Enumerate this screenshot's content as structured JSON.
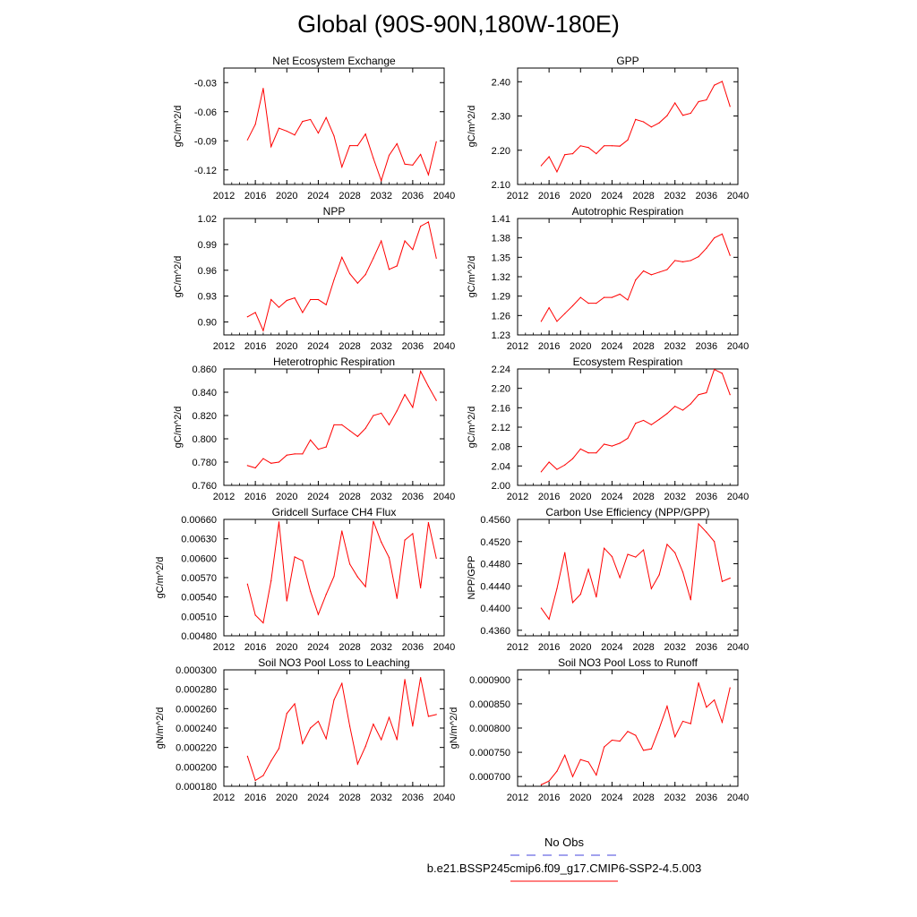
{
  "figure": {
    "title": "Global (90S-90N,180W-180E)",
    "legend": {
      "obs_label": "No Obs",
      "run_label": "b.e21.BSSP245cmip6.f09_g17.CMIP6-SSP2-4.5.003",
      "obs_color": "#4444dd",
      "run_color": "#ff0000"
    }
  },
  "chart_data": [
    {
      "type": "line",
      "title": "Net Ecosystem Exchange",
      "ylabel": "gC/m^2/d",
      "xlabel": "",
      "xlim": [
        2012,
        2040
      ],
      "ylim": [
        -0.135,
        -0.015
      ],
      "xticks": [
        "2012",
        "2016",
        "2020",
        "2024",
        "2028",
        "2032",
        "2036",
        "2040"
      ],
      "yticks": [
        "-0.03",
        "-0.06",
        "-0.09",
        "-0.12"
      ],
      "ytick_values": [
        -0.03,
        -0.06,
        -0.09,
        -0.12
      ],
      "x": [
        2015,
        2016,
        2017,
        2018,
        2019,
        2020,
        2021,
        2022,
        2023,
        2024,
        2025,
        2026,
        2027,
        2028,
        2029,
        2030,
        2031,
        2032,
        2033,
        2034,
        2035,
        2036,
        2037,
        2038,
        2039
      ],
      "values": [
        -0.089,
        -0.073,
        -0.036,
        -0.096,
        -0.077,
        -0.08,
        -0.084,
        -0.07,
        -0.068,
        -0.082,
        -0.066,
        -0.085,
        -0.117,
        -0.095,
        -0.095,
        -0.083,
        -0.108,
        -0.131,
        -0.105,
        -0.093,
        -0.114,
        -0.115,
        -0.104,
        -0.125,
        -0.091
      ]
    },
    {
      "type": "line",
      "title": "GPP",
      "ylabel": "gC/m^2/d",
      "xlabel": "",
      "xlim": [
        2012,
        2040
      ],
      "ylim": [
        2.1,
        2.44
      ],
      "xticks": [
        "2012",
        "2016",
        "2020",
        "2024",
        "2028",
        "2032",
        "2036",
        "2040"
      ],
      "yticks": [
        "2.10",
        "2.20",
        "2.30",
        "2.40"
      ],
      "ytick_values": [
        2.1,
        2.2,
        2.3,
        2.4
      ],
      "x": [
        2015,
        2016,
        2017,
        2018,
        2019,
        2020,
        2021,
        2022,
        2023,
        2024,
        2025,
        2026,
        2027,
        2028,
        2029,
        2030,
        2031,
        2032,
        2033,
        2034,
        2035,
        2036,
        2037,
        2038,
        2039
      ],
      "values": [
        2.155,
        2.181,
        2.137,
        2.187,
        2.19,
        2.213,
        2.208,
        2.19,
        2.213,
        2.213,
        2.212,
        2.23,
        2.29,
        2.283,
        2.268,
        2.28,
        2.301,
        2.338,
        2.302,
        2.308,
        2.342,
        2.347,
        2.39,
        2.401,
        2.328
      ]
    },
    {
      "type": "line",
      "title": "NPP",
      "ylabel": "gC/m^2/d",
      "xlabel": "",
      "xlim": [
        2012,
        2040
      ],
      "ylim": [
        0.885,
        1.02
      ],
      "xticks": [
        "2012",
        "2016",
        "2020",
        "2024",
        "2028",
        "2032",
        "2036",
        "2040"
      ],
      "yticks": [
        "0.90",
        "0.93",
        "0.96",
        "0.99",
        "1.02"
      ],
      "ytick_values": [
        0.9,
        0.93,
        0.96,
        0.99,
        1.02
      ],
      "x": [
        2015,
        2016,
        2017,
        2018,
        2019,
        2020,
        2021,
        2022,
        2023,
        2024,
        2025,
        2026,
        2027,
        2028,
        2029,
        2030,
        2031,
        2032,
        2033,
        2034,
        2035,
        2036,
        2037,
        2038,
        2039
      ],
      "values": [
        0.906,
        0.911,
        0.89,
        0.926,
        0.917,
        0.925,
        0.928,
        0.911,
        0.926,
        0.926,
        0.92,
        0.949,
        0.975,
        0.956,
        0.945,
        0.955,
        0.974,
        0.994,
        0.961,
        0.965,
        0.994,
        0.984,
        1.011,
        1.016,
        0.974
      ]
    },
    {
      "type": "line",
      "title": "Autotrophic Respiration",
      "ylabel": "gC/m^2/d",
      "xlabel": "",
      "xlim": [
        2012,
        2040
      ],
      "ylim": [
        1.23,
        1.41
      ],
      "xticks": [
        "2012",
        "2016",
        "2020",
        "2024",
        "2028",
        "2032",
        "2036",
        "2040"
      ],
      "yticks": [
        "1.23",
        "1.26",
        "1.29",
        "1.32",
        "1.35",
        "1.38",
        "1.41"
      ],
      "ytick_values": [
        1.23,
        1.26,
        1.29,
        1.32,
        1.35,
        1.38,
        1.41
      ],
      "x": [
        2015,
        2016,
        2017,
        2018,
        2019,
        2020,
        2021,
        2022,
        2023,
        2024,
        2025,
        2026,
        2027,
        2028,
        2029,
        2030,
        2031,
        2032,
        2033,
        2034,
        2035,
        2036,
        2037,
        2038,
        2039
      ],
      "values": [
        1.251,
        1.272,
        1.251,
        1.263,
        1.275,
        1.288,
        1.279,
        1.279,
        1.288,
        1.288,
        1.293,
        1.284,
        1.315,
        1.329,
        1.323,
        1.327,
        1.331,
        1.345,
        1.343,
        1.345,
        1.351,
        1.364,
        1.38,
        1.386,
        1.353
      ]
    },
    {
      "type": "line",
      "title": "Heterotrophic Respiration",
      "ylabel": "gC/m^2/d",
      "xlabel": "",
      "xlim": [
        2012,
        2040
      ],
      "ylim": [
        0.76,
        0.86
      ],
      "xticks": [
        "2012",
        "2016",
        "2020",
        "2024",
        "2028",
        "2032",
        "2036",
        "2040"
      ],
      "yticks": [
        "0.760",
        "0.780",
        "0.800",
        "0.820",
        "0.840",
        "0.860"
      ],
      "ytick_values": [
        0.76,
        0.78,
        0.8,
        0.82,
        0.84,
        0.86
      ],
      "x": [
        2015,
        2016,
        2017,
        2018,
        2019,
        2020,
        2021,
        2022,
        2023,
        2024,
        2025,
        2026,
        2027,
        2028,
        2029,
        2030,
        2031,
        2032,
        2033,
        2034,
        2035,
        2036,
        2037,
        2038,
        2039
      ],
      "values": [
        0.777,
        0.775,
        0.783,
        0.779,
        0.78,
        0.786,
        0.787,
        0.787,
        0.799,
        0.791,
        0.793,
        0.812,
        0.812,
        0.807,
        0.802,
        0.809,
        0.82,
        0.822,
        0.812,
        0.824,
        0.838,
        0.827,
        0.858,
        0.845,
        0.833
      ]
    },
    {
      "type": "line",
      "title": "Ecosystem Respiration",
      "ylabel": "gC/m^2/d",
      "xlabel": "",
      "xlim": [
        2012,
        2040
      ],
      "ylim": [
        2.0,
        2.24
      ],
      "xticks": [
        "2012",
        "2016",
        "2020",
        "2024",
        "2028",
        "2032",
        "2036",
        "2040"
      ],
      "yticks": [
        "2.00",
        "2.04",
        "2.08",
        "2.12",
        "2.16",
        "2.20",
        "2.24"
      ],
      "ytick_values": [
        2.0,
        2.04,
        2.08,
        2.12,
        2.16,
        2.2,
        2.24
      ],
      "x": [
        2015,
        2016,
        2017,
        2018,
        2019,
        2020,
        2021,
        2022,
        2023,
        2024,
        2025,
        2026,
        2027,
        2028,
        2029,
        2030,
        2031,
        2032,
        2033,
        2034,
        2035,
        2036,
        2037,
        2038,
        2039
      ],
      "values": [
        2.028,
        2.048,
        2.033,
        2.042,
        2.055,
        2.075,
        2.067,
        2.067,
        2.085,
        2.081,
        2.087,
        2.097,
        2.128,
        2.134,
        2.125,
        2.136,
        2.148,
        2.163,
        2.155,
        2.168,
        2.187,
        2.191,
        2.239,
        2.231,
        2.187
      ]
    },
    {
      "type": "line",
      "title": "Gridcell Surface CH4 Flux",
      "ylabel": "gC/m^2/d",
      "xlabel": "",
      "xlim": [
        2012,
        2040
      ],
      "ylim": [
        0.0048,
        0.0066
      ],
      "xticks": [
        "2012",
        "2016",
        "2020",
        "2024",
        "2028",
        "2032",
        "2036",
        "2040"
      ],
      "yticks": [
        "0.00480",
        "0.00510",
        "0.00540",
        "0.00570",
        "0.00600",
        "0.00630",
        "0.00660"
      ],
      "ytick_values": [
        0.0048,
        0.0051,
        0.0054,
        0.0057,
        0.006,
        0.0063,
        0.0066
      ],
      "x": [
        2015,
        2016,
        2017,
        2018,
        2019,
        2020,
        2021,
        2022,
        2023,
        2024,
        2025,
        2026,
        2027,
        2028,
        2029,
        2030,
        2031,
        2032,
        2033,
        2034,
        2035,
        2036,
        2037,
        2038,
        2039
      ],
      "values": [
        0.0056,
        0.00512,
        0.005,
        0.00565,
        0.00656,
        0.00534,
        0.00602,
        0.00596,
        0.00549,
        0.00513,
        0.00544,
        0.00572,
        0.00642,
        0.00591,
        0.00571,
        0.00556,
        0.00657,
        0.00625,
        0.00601,
        0.00538,
        0.00628,
        0.00638,
        0.00554,
        0.00655,
        0.006
      ]
    },
    {
      "type": "line",
      "title": "Carbon Use Efficiency (NPP/GPP)",
      "ylabel": "NPP/GPP",
      "xlabel": "",
      "xlim": [
        2012,
        2040
      ],
      "ylim": [
        0.435,
        0.456
      ],
      "xticks": [
        "2012",
        "2016",
        "2020",
        "2024",
        "2028",
        "2032",
        "2036",
        "2040"
      ],
      "yticks": [
        "0.4360",
        "0.4400",
        "0.4440",
        "0.4480",
        "0.4520",
        "0.4560"
      ],
      "ytick_values": [
        0.436,
        0.44,
        0.444,
        0.448,
        0.452,
        0.456
      ],
      "x": [
        2015,
        2016,
        2017,
        2018,
        2019,
        2020,
        2021,
        2022,
        2023,
        2024,
        2025,
        2026,
        2027,
        2028,
        2029,
        2030,
        2031,
        2032,
        2033,
        2034,
        2035,
        2036,
        2037,
        2038,
        2039
      ],
      "values": [
        0.44,
        0.438,
        0.4435,
        0.45,
        0.441,
        0.4425,
        0.447,
        0.442,
        0.4508,
        0.4493,
        0.4455,
        0.4497,
        0.4492,
        0.4505,
        0.4435,
        0.446,
        0.4515,
        0.45,
        0.4465,
        0.4415,
        0.4552,
        0.4537,
        0.452,
        0.4448,
        0.4454
      ]
    },
    {
      "type": "line",
      "title": "Soil NO3 Pool Loss to Leaching",
      "ylabel": "gN/m^2/d",
      "xlabel": "",
      "xlim": [
        2012,
        2040
      ],
      "ylim": [
        0.00018,
        0.0003
      ],
      "xticks": [
        "2012",
        "2016",
        "2020",
        "2024",
        "2028",
        "2032",
        "2036",
        "2040"
      ],
      "yticks": [
        "0.000180",
        "0.000200",
        "0.000220",
        "0.000240",
        "0.000260",
        "0.000280",
        "0.000300"
      ],
      "ytick_values": [
        0.00018,
        0.0002,
        0.00022,
        0.00024,
        0.00026,
        0.00028,
        0.0003
      ],
      "x": [
        2015,
        2016,
        2017,
        2018,
        2019,
        2020,
        2021,
        2022,
        2023,
        2024,
        2025,
        2026,
        2027,
        2028,
        2029,
        2030,
        2031,
        2032,
        2033,
        2034,
        2035,
        2036,
        2037,
        2038,
        2039
      ],
      "values": [
        0.000211,
        0.000186,
        0.000191,
        0.000206,
        0.000219,
        0.000255,
        0.000265,
        0.000224,
        0.00024,
        0.000247,
        0.000229,
        0.000269,
        0.000286,
        0.000242,
        0.000203,
        0.000221,
        0.000244,
        0.000228,
        0.000251,
        0.000228,
        0.00029,
        0.000242,
        0.000292,
        0.000252,
        0.000254
      ]
    },
    {
      "type": "line",
      "title": "Soil NO3 Pool Loss to Runoff",
      "ylabel": "gN/m^2/d",
      "xlabel": "",
      "xlim": [
        2012,
        2040
      ],
      "ylim": [
        0.00068,
        0.00092
      ],
      "xticks": [
        "2012",
        "2016",
        "2020",
        "2024",
        "2028",
        "2032",
        "2036",
        "2040"
      ],
      "yticks": [
        "0.000700",
        "0.000750",
        "0.000800",
        "0.000850",
        "0.000900"
      ],
      "ytick_values": [
        0.0007,
        0.00075,
        0.0008,
        0.00085,
        0.0009
      ],
      "x": [
        2015,
        2016,
        2017,
        2018,
        2019,
        2020,
        2021,
        2022,
        2023,
        2024,
        2025,
        2026,
        2027,
        2028,
        2029,
        2030,
        2031,
        2032,
        2033,
        2034,
        2035,
        2036,
        2037,
        2038,
        2039
      ],
      "values": [
        0.000683,
        0.000691,
        0.000711,
        0.000744,
        0.0007,
        0.000735,
        0.00073,
        0.000703,
        0.000761,
        0.000775,
        0.000773,
        0.000793,
        0.000785,
        0.000754,
        0.000757,
        0.000799,
        0.000845,
        0.000782,
        0.000814,
        0.000809,
        0.000893,
        0.000843,
        0.000858,
        0.000812,
        0.000883
      ]
    }
  ]
}
